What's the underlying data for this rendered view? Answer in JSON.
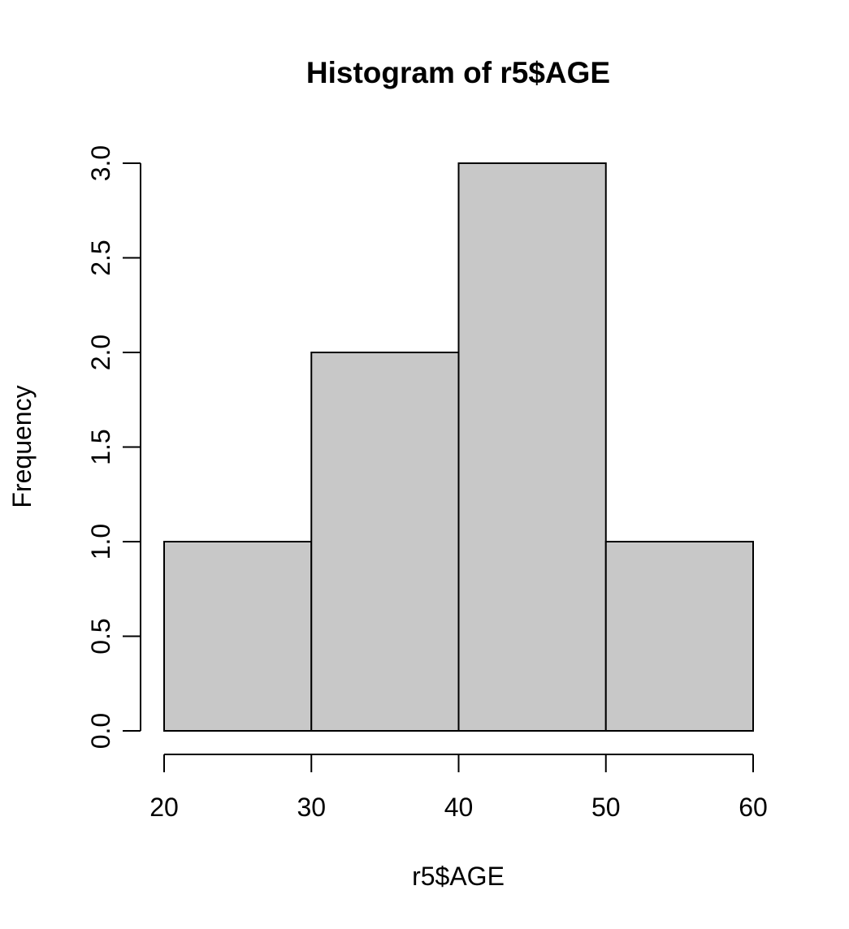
{
  "chart_data": {
    "type": "bar",
    "title": "Histogram of r5$AGE",
    "xlabel": "r5$AGE",
    "ylabel": "Frequency",
    "bins": [
      {
        "from": 20,
        "to": 30,
        "count": 1
      },
      {
        "from": 30,
        "to": 40,
        "count": 2
      },
      {
        "from": 40,
        "to": 50,
        "count": 3
      },
      {
        "from": 50,
        "to": 60,
        "count": 1
      }
    ],
    "x_ticks": [
      20,
      30,
      40,
      50,
      60
    ],
    "y_ticks": [
      "0.0",
      "0.5",
      "1.0",
      "1.5",
      "2.0",
      "2.5",
      "3.0"
    ],
    "xlim": [
      20,
      60
    ],
    "ylim": [
      0,
      3
    ],
    "grid": false,
    "bar_color": "#c8c8c8",
    "edge_color": "#000000"
  }
}
